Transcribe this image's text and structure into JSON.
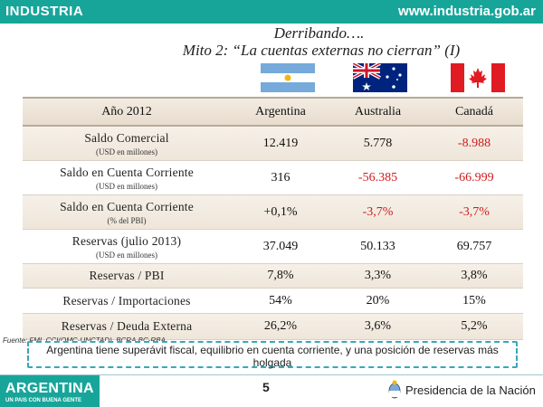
{
  "header": {
    "brand": "INDUSTRIA",
    "url": "www.industria.gob.ar"
  },
  "title": {
    "line1": "Derribando….",
    "line2": "Mito 2: “La cuentas externas no cierran” (I)"
  },
  "flags": [
    "argentina-flag",
    "australia-flag",
    "canada-flag"
  ],
  "table": {
    "headers": [
      "Año 2012",
      "Argentina",
      "Australia",
      "Canadá"
    ],
    "rows": [
      {
        "label": "Saldo Comercial",
        "sub": "(USD en millones)",
        "ar": "12.419",
        "au": "5.778",
        "ca": "-8.988"
      },
      {
        "label": "Saldo en Cuenta Corriente",
        "sub": "(USD en millones)",
        "ar": "316",
        "au": "-56.385",
        "ca": "-66.999"
      },
      {
        "label": "Saldo en Cuenta Corriente",
        "sub": "(% del PBI)",
        "ar": "+0,1%",
        "au": "-3,7%",
        "ca": "-3,7%"
      },
      {
        "label": "Reservas (julio 2013)",
        "sub": "(USD en millones)",
        "ar": "37.049",
        "au": "50.133",
        "ca": "69.757"
      },
      {
        "label": "Reservas  / PBI",
        "sub": "",
        "ar": "7,8%",
        "au": "3,3%",
        "ca": "3,8%"
      },
      {
        "label": "Reservas / Importaciones",
        "sub": "",
        "ar": "54%",
        "au": "20%",
        "ca": "15%"
      },
      {
        "label": "Reservas / Deuda Externa",
        "sub": "",
        "ar": "26,2%",
        "au": "3,6%",
        "ca": "5,2%"
      }
    ]
  },
  "colors": {
    "accent": "#17a59a",
    "negative": "#cc1c1c",
    "callout_border": "#3aa7b5"
  },
  "source": "Fuente: FMI, CCI(OMC-UNCTAD), BCRA,BC-RBA",
  "callout": "Argentina tiene superávit fiscal, equilibrio en cuenta corriente, y una posición de reservas más holgada",
  "footer": {
    "logo_main": "ARGENTINA",
    "logo_sub": "UN PAIS CON BUENA GENTE",
    "page": "5",
    "presidency": "Presidencia de la Nación"
  }
}
